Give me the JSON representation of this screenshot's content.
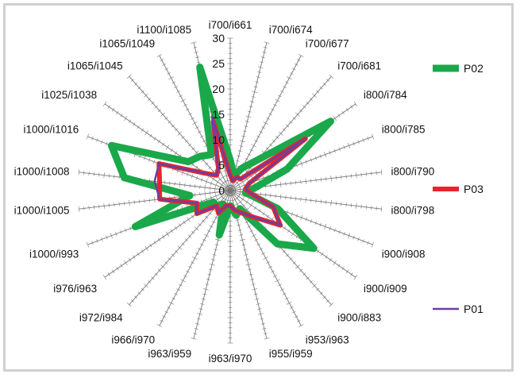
{
  "chart_data": {
    "type": "radar",
    "axes": [
      "i700/i661",
      "i700/i674",
      "i700/i677",
      "i700/i681",
      "i800/i784",
      "i800/i785",
      "i800/i790",
      "i800/i798",
      "i900/i908",
      "i900/i909",
      "i900/i883",
      "i953/i963",
      "i955/i959",
      "i963/i970",
      "i963/i959",
      "i966/i970",
      "i972/i984",
      "i976/i963",
      "i1000/i993",
      "i1000/i1005",
      "i1000/i1008",
      "i1000/i1016",
      "i1025/i1038",
      "i1065/i1045",
      "i1065/i1049",
      "i1100/i1085"
    ],
    "ticks": [
      0,
      5,
      10,
      15,
      20,
      25,
      30
    ],
    "rlim": [
      0,
      30
    ],
    "series": [
      {
        "name": "P02",
        "color": "#1aa84a",
        "values": [
          6,
          3,
          5,
          8,
          24,
          12,
          5,
          3,
          10,
          20,
          14,
          4,
          5,
          3,
          9,
          3,
          4,
          4,
          20,
          8,
          21,
          25,
          10,
          9,
          8,
          25
        ]
      },
      {
        "name": "P03",
        "color": "#e8242c",
        "values": [
          3,
          2,
          3,
          3,
          18,
          4,
          3,
          4,
          9,
          12,
          7,
          5,
          4,
          3,
          3,
          5,
          4,
          8,
          7,
          14,
          14,
          15,
          6,
          4,
          5,
          14
        ]
      },
      {
        "name": "P01",
        "color": "#6b3fa0",
        "values": [
          3,
          2,
          3,
          3,
          18,
          4,
          3,
          4,
          9,
          12,
          7,
          5,
          4,
          3,
          3,
          5,
          4,
          8,
          7,
          14,
          15,
          15,
          6,
          4,
          5,
          15
        ]
      }
    ],
    "legend": "right"
  }
}
